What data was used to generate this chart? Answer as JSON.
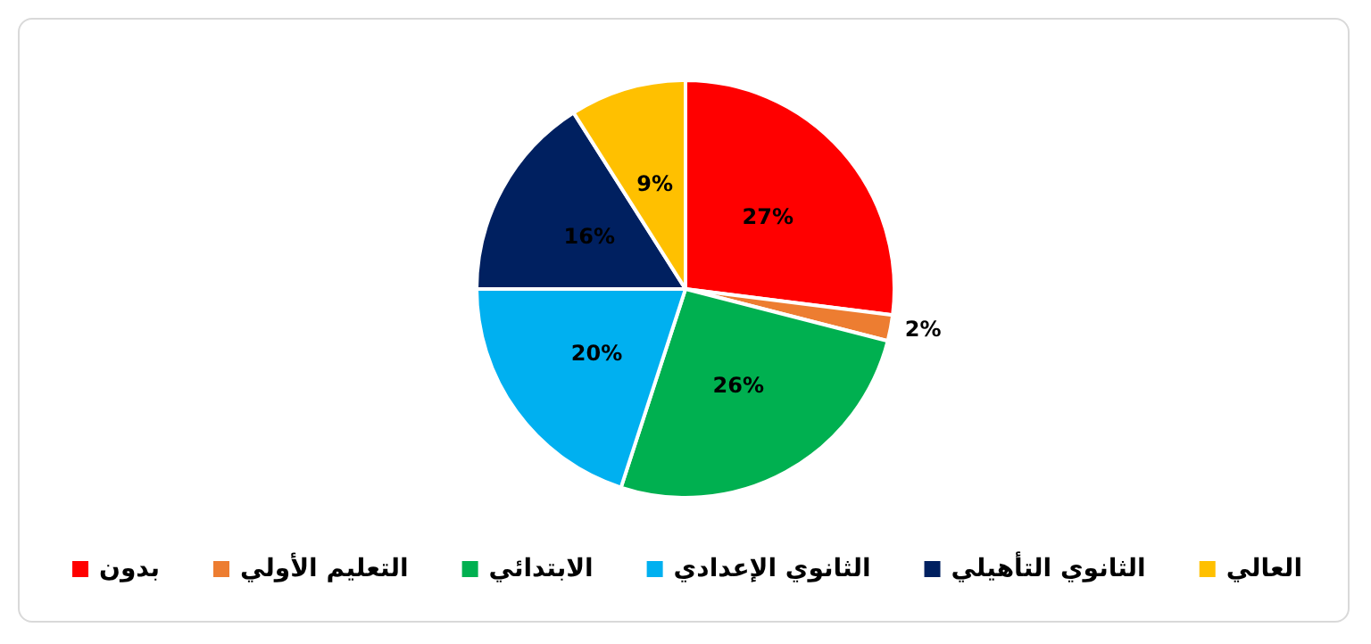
{
  "chart_data": {
    "type": "pie",
    "categories": [
      "بدون",
      "التعليم الأولي",
      "الابتدائي",
      "الثانوي الإعدادي",
      "الثانوي التأهيلي",
      "العالي"
    ],
    "values": [
      27,
      2,
      26,
      20,
      16,
      9
    ],
    "colors": [
      "#ff0000",
      "#ed7d31",
      "#00b050",
      "#00b0f0",
      "#002060",
      "#ffc000"
    ],
    "value_labels": [
      "27%",
      "2%",
      "26%",
      "20%",
      "16%",
      "9%"
    ],
    "legend": "bottom"
  }
}
